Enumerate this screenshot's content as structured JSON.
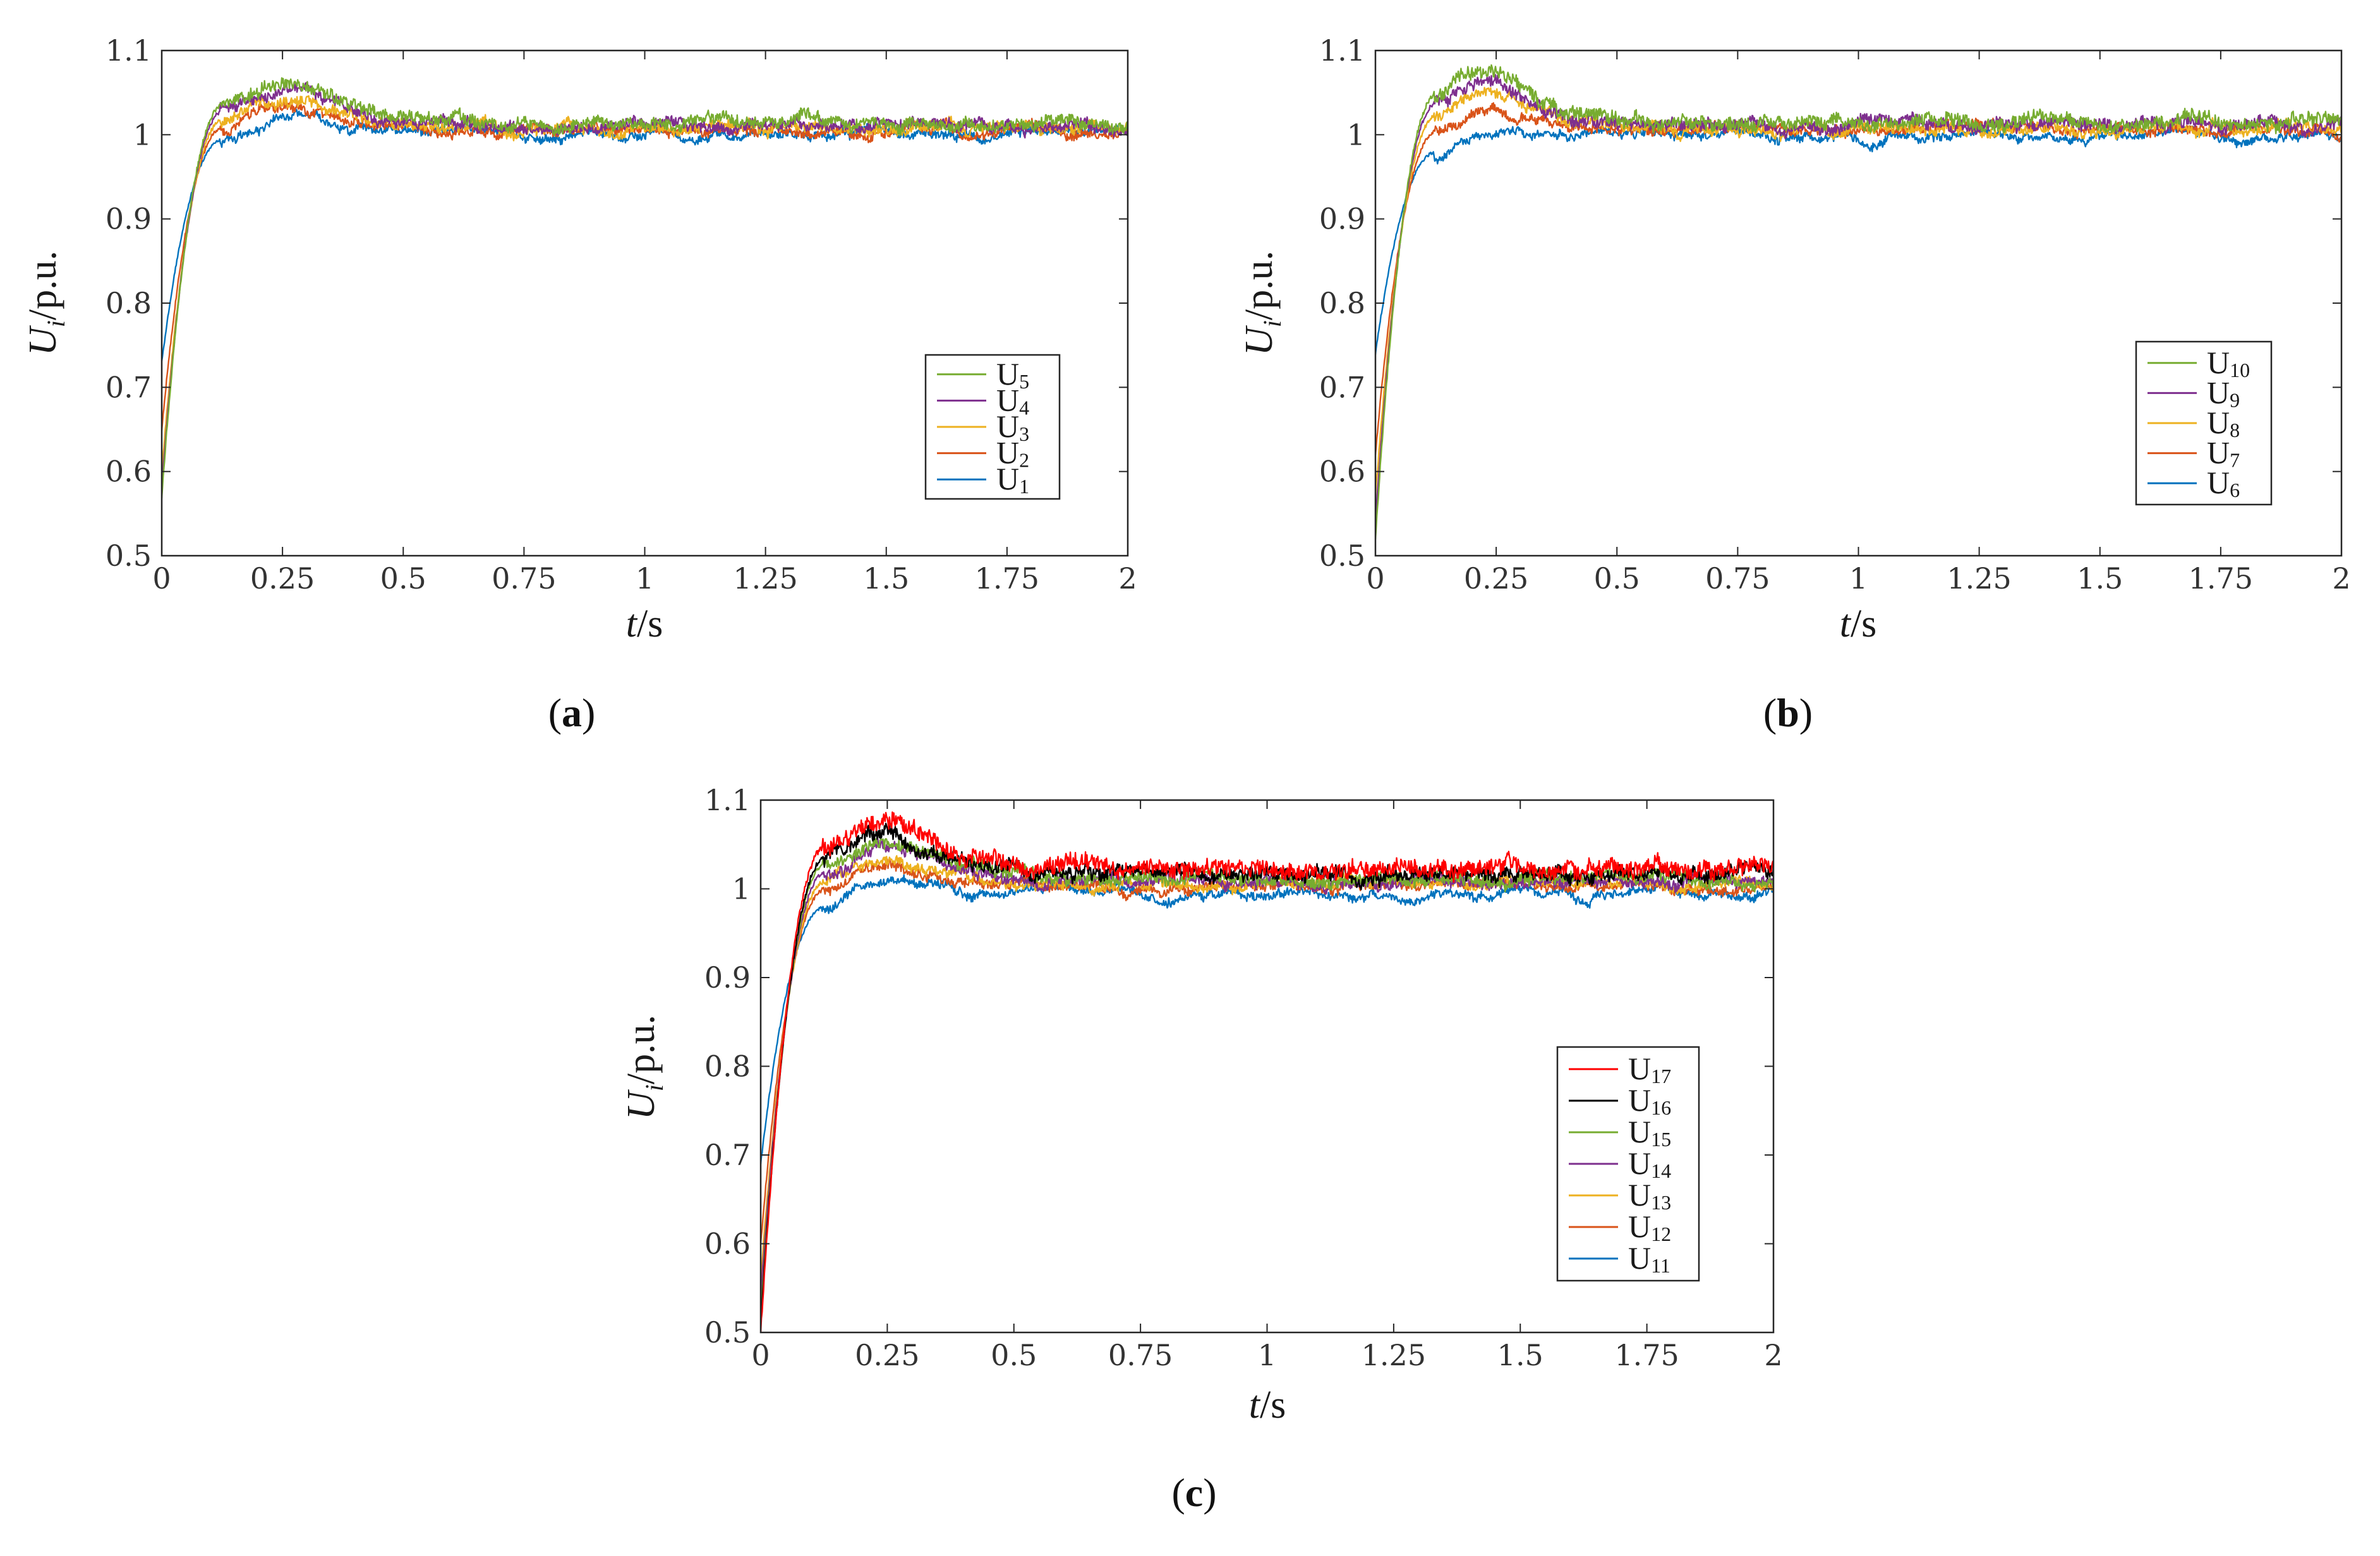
{
  "chart_data": [
    {
      "panel": "a",
      "panel_label": "a",
      "type": "line",
      "xlabel": {
        "italic": "t",
        "rest": "/s"
      },
      "ylabel": {
        "italic": "U",
        "sub": "i",
        "rest": "/p.u."
      },
      "xlim": [
        0,
        2
      ],
      "ylim": [
        0.5,
        1.1
      ],
      "xticks": [
        0,
        0.25,
        0.5,
        0.75,
        1,
        1.25,
        1.5,
        1.75,
        2
      ],
      "xtick_labels": [
        "0",
        "0.25",
        "0.5",
        "0.75",
        "1",
        "1.25",
        "1.5",
        "1.75",
        "2"
      ],
      "yticks": [
        0.5,
        0.6,
        0.7,
        0.8,
        0.9,
        1,
        1.1
      ],
      "ytick_labels": [
        "0.5",
        "0.6",
        "0.7",
        "0.8",
        "0.9",
        "1",
        "1.1"
      ],
      "grid": false,
      "legend_position": "right",
      "series": [
        {
          "name": "U5",
          "label_base": "U",
          "label_sub": "5",
          "color": "#77ac30",
          "start": 0.57,
          "peak": 1.062,
          "peak_t": 0.29,
          "final": 1.015,
          "noise": 0.008
        },
        {
          "name": "U4",
          "label_base": "U",
          "label_sub": "4",
          "color": "#7e2f8e",
          "start": 0.58,
          "peak": 1.055,
          "peak_t": 0.29,
          "final": 1.012,
          "noise": 0.007
        },
        {
          "name": "U3",
          "label_base": "U",
          "label_sub": "3",
          "color": "#edb120",
          "start": 0.6,
          "peak": 1.045,
          "peak_t": 0.29,
          "final": 1.008,
          "noise": 0.007
        },
        {
          "name": "U2",
          "label_base": "U",
          "label_sub": "2",
          "color": "#d95319",
          "start": 0.65,
          "peak": 1.035,
          "peak_t": 0.29,
          "final": 1.005,
          "noise": 0.006
        },
        {
          "name": "U1",
          "label_base": "U",
          "label_sub": "1",
          "color": "#0072bd",
          "start": 0.73,
          "peak": 1.02,
          "peak_t": 0.29,
          "final": 1.002,
          "noise": 0.005
        }
      ]
    },
    {
      "panel": "b",
      "panel_label": "b",
      "type": "line",
      "xlabel": {
        "italic": "t",
        "rest": "/s"
      },
      "ylabel": {
        "italic": "U",
        "sub": "i",
        "rest": "/p.u."
      },
      "xlim": [
        0,
        2
      ],
      "ylim": [
        0.5,
        1.1
      ],
      "xticks": [
        0,
        0.25,
        0.5,
        0.75,
        1,
        1.25,
        1.5,
        1.75,
        2
      ],
      "xtick_labels": [
        "0",
        "0.25",
        "0.5",
        "0.75",
        "1",
        "1.25",
        "1.5",
        "1.75",
        "2"
      ],
      "yticks": [
        0.5,
        0.6,
        0.7,
        0.8,
        0.9,
        1,
        1.1
      ],
      "ytick_labels": [
        "0.5",
        "0.6",
        "0.7",
        "0.8",
        "0.9",
        "1",
        "1.1"
      ],
      "grid": false,
      "legend_position": "right",
      "series": [
        {
          "name": "U10",
          "label_base": "U",
          "label_sub": "10",
          "color": "#77ac30",
          "start": 0.52,
          "peak": 1.075,
          "peak_t": 0.25,
          "final": 1.015,
          "noise": 0.009
        },
        {
          "name": "U9",
          "label_base": "U",
          "label_sub": "9",
          "color": "#7e2f8e",
          "start": 0.54,
          "peak": 1.065,
          "peak_t": 0.25,
          "final": 1.012,
          "noise": 0.008
        },
        {
          "name": "U8",
          "label_base": "U",
          "label_sub": "8",
          "color": "#edb120",
          "start": 0.57,
          "peak": 1.05,
          "peak_t": 0.25,
          "final": 1.008,
          "noise": 0.007
        },
        {
          "name": "U7",
          "label_base": "U",
          "label_sub": "7",
          "color": "#d95319",
          "start": 0.62,
          "peak": 1.03,
          "peak_t": 0.25,
          "final": 1.004,
          "noise": 0.006
        },
        {
          "name": "U6",
          "label_base": "U",
          "label_sub": "6",
          "color": "#0072bd",
          "start": 0.74,
          "peak": 1.005,
          "peak_t": 0.25,
          "final": 0.998,
          "noise": 0.005
        }
      ]
    },
    {
      "panel": "c",
      "panel_label": "c",
      "type": "line",
      "xlabel": {
        "italic": "t",
        "rest": "/s"
      },
      "ylabel": {
        "italic": "U",
        "sub": "i",
        "rest": "/p.u."
      },
      "xlim": [
        0,
        2
      ],
      "ylim": [
        0.5,
        1.1
      ],
      "xticks": [
        0,
        0.25,
        0.5,
        0.75,
        1,
        1.25,
        1.5,
        1.75,
        2
      ],
      "xtick_labels": [
        "0",
        "0.25",
        "0.5",
        "0.75",
        "1",
        "1.25",
        "1.5",
        "1.75",
        "2"
      ],
      "yticks": [
        0.5,
        0.6,
        0.7,
        0.8,
        0.9,
        1,
        1.1
      ],
      "ytick_labels": [
        "0.5",
        "0.6",
        "0.7",
        "0.8",
        "0.9",
        "1",
        "1.1"
      ],
      "grid": false,
      "legend_position": "right",
      "series": [
        {
          "name": "U17",
          "label_base": "U",
          "label_sub": "17",
          "color": "#ff0000",
          "start": 0.5,
          "peak": 1.075,
          "peak_t": 0.27,
          "final": 1.022,
          "noise": 0.011
        },
        {
          "name": "U16",
          "label_base": "U",
          "label_sub": "16",
          "color": "#000000",
          "start": 0.51,
          "peak": 1.062,
          "peak_t": 0.27,
          "final": 1.016,
          "noise": 0.009
        },
        {
          "name": "U15",
          "label_base": "U",
          "label_sub": "15",
          "color": "#77ac30",
          "start": 0.52,
          "peak": 1.055,
          "peak_t": 0.27,
          "final": 1.012,
          "noise": 0.008
        },
        {
          "name": "U14",
          "label_base": "U",
          "label_sub": "14",
          "color": "#7e2f8e",
          "start": 0.54,
          "peak": 1.045,
          "peak_t": 0.27,
          "final": 1.008,
          "noise": 0.007
        },
        {
          "name": "U13",
          "label_base": "U",
          "label_sub": "13",
          "color": "#edb120",
          "start": 0.56,
          "peak": 1.035,
          "peak_t": 0.27,
          "final": 1.005,
          "noise": 0.006
        },
        {
          "name": "U12",
          "label_base": "U",
          "label_sub": "12",
          "color": "#d95319",
          "start": 0.6,
          "peak": 1.025,
          "peak_t": 0.27,
          "final": 1.002,
          "noise": 0.006
        },
        {
          "name": "U11",
          "label_base": "U",
          "label_sub": "11",
          "color": "#0072bd",
          "start": 0.69,
          "peak": 1.005,
          "peak_t": 0.27,
          "final": 0.993,
          "noise": 0.005
        }
      ]
    }
  ]
}
